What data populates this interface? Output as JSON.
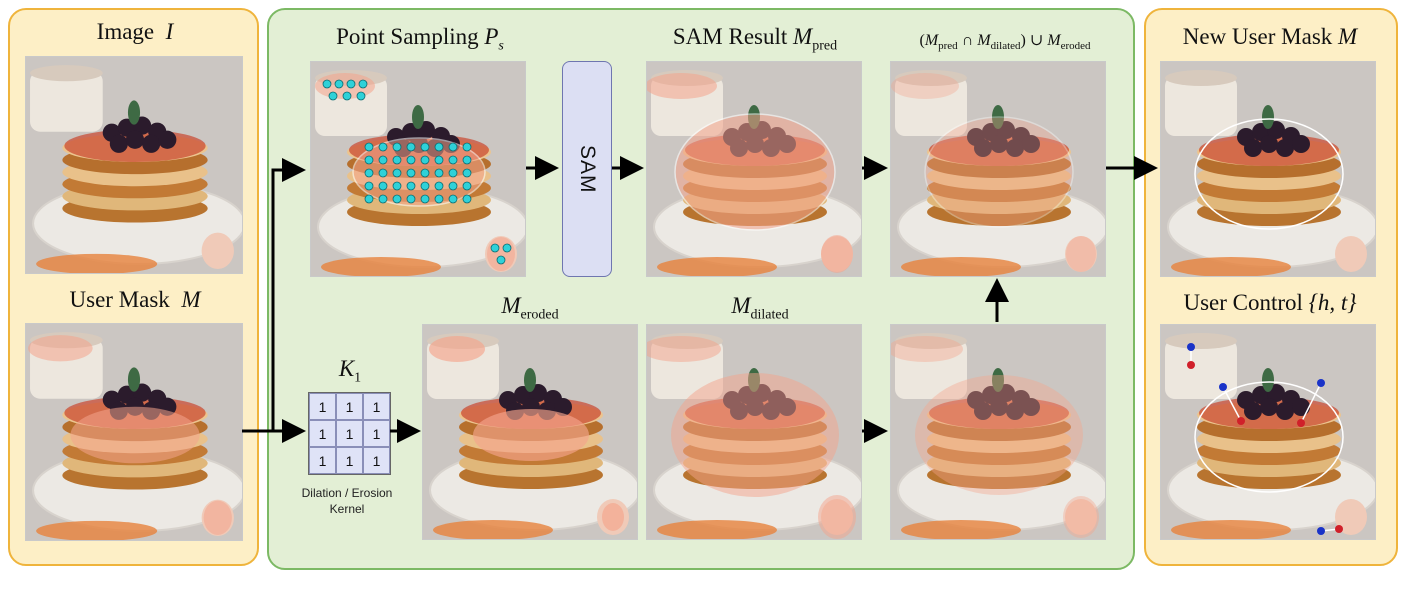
{
  "left_panel": {
    "image_label_text": "Image",
    "image_label_math": "I",
    "user_mask_label_text": "User Mask",
    "user_mask_label_math": "M"
  },
  "middle_panel": {
    "point_sampling_text": "Point Sampling",
    "point_sampling_math": "P",
    "point_sampling_sub": "s",
    "sam_result_text": "SAM Result",
    "sam_result_math": "M",
    "sam_result_sub": "pred",
    "combine_label": {
      "open": "(",
      "m1": "M",
      "s1": "pred",
      "op1": "∩",
      "m2": "M",
      "s2": "dilated",
      "close": ")",
      "op2": "∪",
      "m3": "M",
      "s3": "eroded"
    },
    "sam_box_label": "SAM",
    "eroded_math": "M",
    "eroded_sub": "eroded",
    "dilated_math": "M",
    "dilated_sub": "dilated",
    "kernel_math": "K",
    "kernel_sub": "1",
    "kernel_values": [
      "1",
      "1",
      "1",
      "1",
      "1",
      "1",
      "1",
      "1",
      "1"
    ],
    "kernel_caption_line1": "Dilation / Erosion",
    "kernel_caption_line2": "Kernel"
  },
  "right_panel": {
    "new_mask_text": "New User Mask",
    "new_mask_math": "M",
    "user_control_text": "User Control",
    "user_control_math": "{h, t}"
  },
  "colors": {
    "left_panel_fill": "#fdefc6",
    "left_panel_border": "#efb43c",
    "middle_panel_fill": "#e3efd5",
    "middle_panel_border": "#7cb964",
    "sam_box_fill": "#dcdff3",
    "kernel_fill": "#dfe3f7",
    "mask_overlay": "#f4a48c",
    "sample_point": "#2fd1d8",
    "handle_point": "#1a33c8",
    "target_point": "#d0202a"
  }
}
